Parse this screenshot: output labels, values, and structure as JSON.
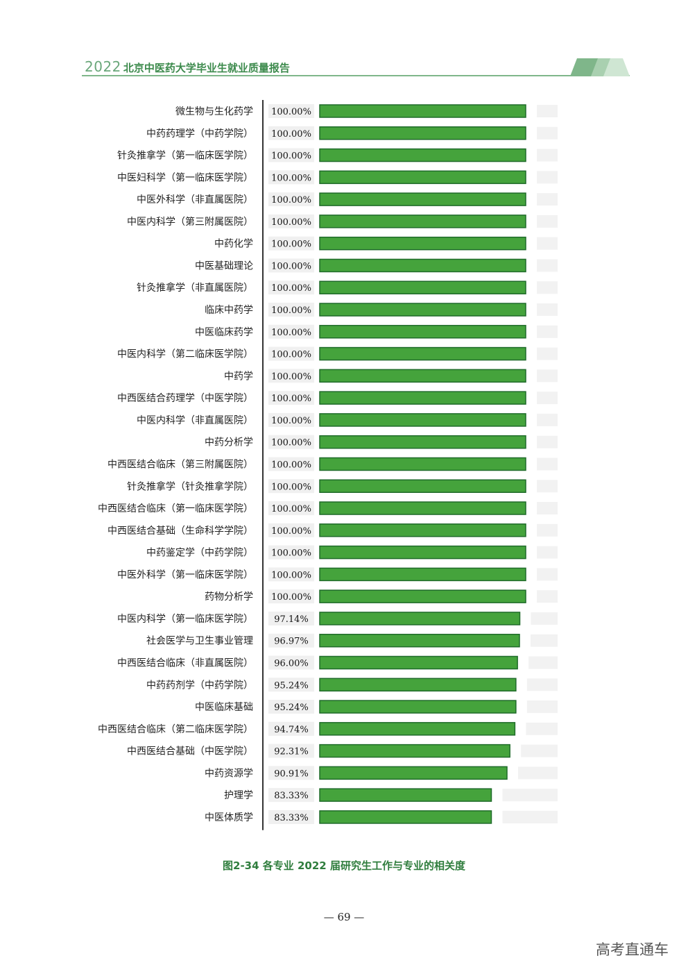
{
  "header": {
    "year": "2022",
    "title": "北京中医药大学毕业生就业质量报告"
  },
  "caption": "图2-34  各专业 2022 届研究生工作与专业的相关度",
  "page_number": "— 69 —",
  "watermark": "高考直通车",
  "colors": {
    "bar": "#45a33c",
    "bar_border": "#1f6b2a",
    "track": "#f2f2f2",
    "label_box": "#f0f0f0",
    "accent": "#3c8a4c"
  },
  "chart_data": {
    "type": "bar",
    "orientation": "horizontal",
    "xlim": [
      0,
      100
    ],
    "categories": [
      "微生物与生化药学",
      "中药药理学（中药学院）",
      "针灸推拿学（第一临床医学院）",
      "中医妇科学（第一临床医学院）",
      "中医外科学（非直属医院）",
      "中医内科学（第三附属医院）",
      "中药化学",
      "中医基础理论",
      "针灸推拿学（非直属医院）",
      "临床中药学",
      "中医临床药学",
      "中医内科学（第二临床医学院）",
      "中药学",
      "中西医结合药理学（中医学院）",
      "中医内科学（非直属医院）",
      "中药分析学",
      "中西医结合临床（第三附属医院）",
      "针灸推拿学（针灸推拿学院）",
      "中西医结合临床（第一临床医学院）",
      "中西医结合基础（生命科学学院）",
      "中药鉴定学（中药学院）",
      "中医外科学（第一临床医学院）",
      "药物分析学",
      "中医内科学（第一临床医学院）",
      "社会医学与卫生事业管理",
      "中西医结合临床（非直属医院）",
      "中药药剂学（中药学院）",
      "中医临床基础",
      "中西医结合临床（第二临床医学院）",
      "中西医结合基础（中医学院）",
      "中药资源学",
      "护理学",
      "中医体质学"
    ],
    "values": [
      100,
      100,
      100,
      100,
      100,
      100,
      100,
      100,
      100,
      100,
      100,
      100,
      100,
      100,
      100,
      100,
      100,
      100,
      100,
      100,
      100,
      100,
      100,
      97.14,
      96.97,
      96.0,
      95.24,
      95.24,
      94.74,
      92.31,
      90.91,
      83.33,
      83.33
    ],
    "value_labels": [
      "100.00%",
      "100.00%",
      "100.00%",
      "100.00%",
      "100.00%",
      "100.00%",
      "100.00%",
      "100.00%",
      "100.00%",
      "100.00%",
      "100.00%",
      "100.00%",
      "100.00%",
      "100.00%",
      "100.00%",
      "100.00%",
      "100.00%",
      "100.00%",
      "100.00%",
      "100.00%",
      "100.00%",
      "100.00%",
      "100.00%",
      "97.14%",
      "96.97%",
      "96.00%",
      "95.24%",
      "95.24%",
      "94.74%",
      "92.31%",
      "90.91%",
      "83.33%",
      "83.33%"
    ]
  }
}
